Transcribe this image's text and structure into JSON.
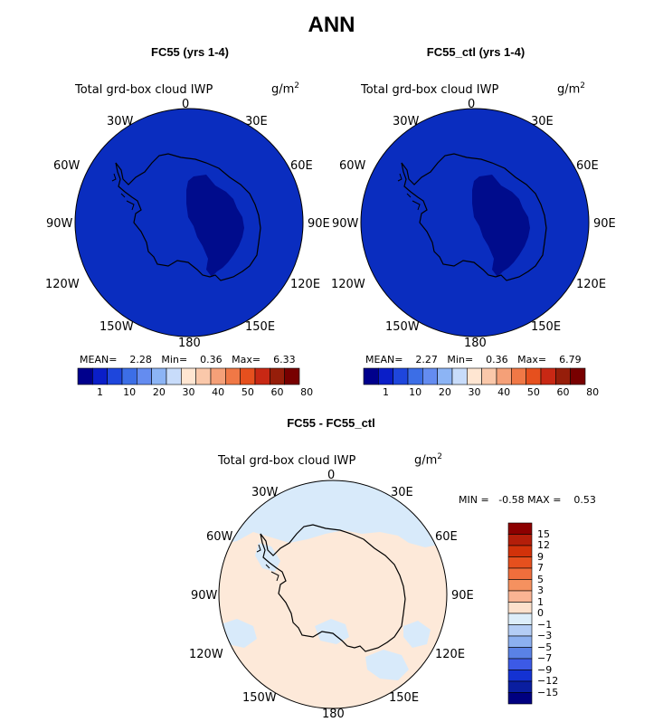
{
  "title": "ANN",
  "variable_label": "Total grd-box cloud IWP",
  "units_base": "g/m",
  "units_exp": "2",
  "lon_labels": [
    "0",
    "30E",
    "60E",
    "90E",
    "120E",
    "150E",
    "180",
    "150W",
    "120W",
    "90W",
    "60W",
    "30W"
  ],
  "panels": [
    {
      "title": "FC55 (yrs 1-4)",
      "mean_label": "MEAN=",
      "mean": "2.28",
      "min_label": "Min=",
      "min": "0.36",
      "max_label": "Max=",
      "max": "6.33"
    },
    {
      "title": "FC55_ctl (yrs 1-4)",
      "mean_label": "MEAN=",
      "mean": "2.27",
      "min_label": "Min=",
      "min": "0.36",
      "max_label": "Max=",
      "max": "6.79"
    }
  ],
  "colorbar": {
    "ticks": [
      "1",
      "10",
      "20",
      "30",
      "40",
      "50",
      "60",
      "80"
    ],
    "colors": [
      "#00008c",
      "#0a1ec8",
      "#1e46dc",
      "#3c6ee6",
      "#648cf0",
      "#8cb4f5",
      "#c8dcfa",
      "#ffe6d2",
      "#fac8aa",
      "#f5a078",
      "#f07846",
      "#e6501e",
      "#c82814",
      "#961e0a",
      "#780000"
    ]
  },
  "diff": {
    "title": "FC55 - FC55_ctl",
    "min_label": "MIN =",
    "min": "-0.58",
    "max_label": "MAX =",
    "max": "0.53",
    "colorbar_levels": [
      "15",
      "12",
      "9",
      "7",
      "5",
      "3",
      "1",
      "0",
      "−1",
      "−3",
      "−5",
      "−7",
      "−9",
      "−12",
      "−15"
    ],
    "colorbar_colors": [
      "#8c0000",
      "#b41e0a",
      "#d2320a",
      "#e6501e",
      "#f06e3c",
      "#f5915f",
      "#fab493",
      "#fde1cc",
      "#ddeefa",
      "#b4cdf5",
      "#8cb0f0",
      "#5a82e6",
      "#3c5ae6",
      "#1432d2",
      "#0a1ea0",
      "#000080"
    ]
  },
  "map_colors": {
    "ocean": "#0a2dbf",
    "interior": "#000c8c",
    "diff_positive": "#fde9d9",
    "diff_negative": "#d8eafa"
  }
}
